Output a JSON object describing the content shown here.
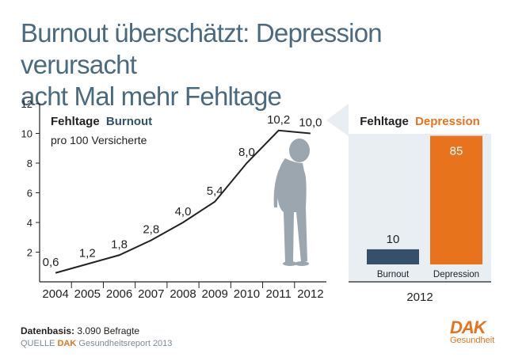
{
  "title_line1": "Burnout überschätzt: Depression verursacht",
  "title_line2": "acht Mal mehr Fehltage",
  "footnote_label": "Datenbasis:",
  "footnote_value": "3.090 Befragte",
  "source_label": "QUELLE",
  "source_brand": "DAK",
  "source_text": "Gesundheitsreport 2013",
  "logo": {
    "word": "DAK",
    "sub": "Gesundheit"
  },
  "colors": {
    "burnout": "#34506b",
    "depression": "#e8731d",
    "title": "#4a6a80",
    "silhouette": "#9ba6ae",
    "panel": "#e9eef3"
  },
  "chart_data": [
    {
      "type": "line",
      "title_part1": "Fehltage",
      "title_part2": "Burnout",
      "subtitle": "pro 100 Versicherte",
      "categories": [
        "2004",
        "2005",
        "2006",
        "2007",
        "2008",
        "2009",
        "2010",
        "2011",
        "2012"
      ],
      "values": [
        0.6,
        1.2,
        1.8,
        2.8,
        4.0,
        5.4,
        8.0,
        10.2,
        10.0
      ],
      "labels": [
        "0,6",
        "1,2",
        "1,8",
        "2,8",
        "4,0",
        "5,4",
        "8,0",
        "10,2",
        "10,0"
      ],
      "yticks": [
        2,
        4,
        6,
        8,
        10,
        12
      ],
      "ylim": [
        0,
        12
      ],
      "grid": false
    },
    {
      "type": "bar",
      "title_part1": "Fehltage",
      "title_part2": "Depression",
      "categories": [
        "Burnout",
        "Depression"
      ],
      "values": [
        10,
        85
      ],
      "labels": [
        "10",
        "85"
      ],
      "year": "2012",
      "ylim": [
        0,
        90
      ]
    }
  ]
}
